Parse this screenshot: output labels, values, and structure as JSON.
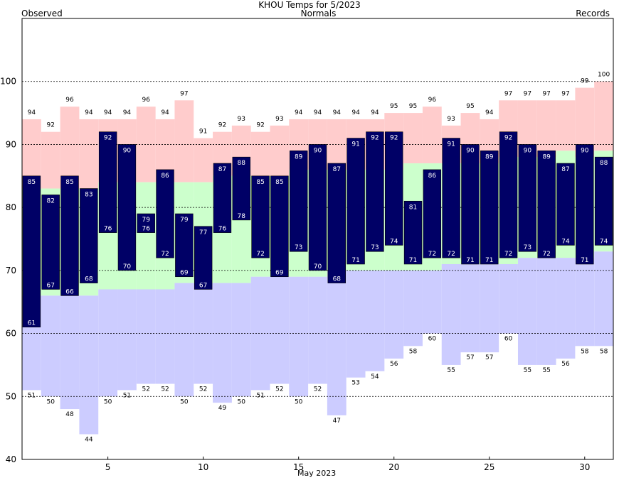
{
  "chart_data": {
    "type": "bar",
    "title": "KHOU Temps for 5/2023",
    "legend": [
      "Observed",
      "Normals",
      "Records"
    ],
    "xlabel": "May 2023",
    "x_ticks": [
      5,
      10,
      15,
      20,
      25,
      30
    ],
    "y_ticks": [
      40,
      50,
      60,
      70,
      80,
      90,
      100
    ],
    "ylim": [
      40,
      110
    ],
    "xlim": [
      0.5,
      31.5
    ],
    "grid": "horizontal dashed at 50, 60, 70, 80, 90, 100",
    "colors": {
      "observed": "#000066",
      "normal_band": "#ccffcc",
      "record_high_band": "#ffcccc",
      "record_low_band": "#ccccff",
      "legend_observed": "#000080",
      "legend_normals": "#006600",
      "legend_records": "#cc88dd"
    },
    "days": [
      1,
      2,
      3,
      4,
      5,
      6,
      7,
      8,
      9,
      10,
      11,
      12,
      13,
      14,
      15,
      16,
      17,
      18,
      19,
      20,
      21,
      22,
      23,
      24,
      25,
      26,
      27,
      28,
      29,
      30,
      31
    ],
    "observed_high": [
      85,
      82,
      85,
      83,
      92,
      90,
      79,
      86,
      79,
      77,
      87,
      88,
      85,
      85,
      89,
      90,
      87,
      91,
      92,
      92,
      81,
      86,
      91,
      90,
      89,
      92,
      90,
      89,
      87,
      90,
      88
    ],
    "observed_low": [
      61,
      67,
      66,
      68,
      76,
      70,
      76,
      72,
      69,
      67,
      76,
      78,
      72,
      69,
      73,
      70,
      68,
      71,
      73,
      74,
      71,
      72,
      72,
      71,
      71,
      72,
      73,
      72,
      74,
      71,
      74
    ],
    "normal_high": [
      83,
      83,
      83,
      83,
      84,
      84,
      84,
      84,
      84,
      84,
      85,
      85,
      85,
      85,
      86,
      86,
      86,
      86,
      86,
      86,
      87,
      87,
      87,
      87,
      87,
      88,
      88,
      88,
      89,
      88,
      89
    ],
    "normal_low": [
      66,
      66,
      66,
      66,
      67,
      67,
      67,
      67,
      68,
      68,
      68,
      68,
      69,
      69,
      69,
      69,
      70,
      70,
      70,
      70,
      70,
      70,
      71,
      71,
      71,
      71,
      72,
      72,
      72,
      72,
      73
    ],
    "record_high": [
      94,
      92,
      96,
      94,
      94,
      94,
      96,
      94,
      97,
      91,
      92,
      93,
      92,
      93,
      94,
      94,
      94,
      94,
      94,
      95,
      95,
      96,
      93,
      95,
      94,
      97,
      97,
      97,
      97,
      99,
      100
    ],
    "record_low": [
      51,
      50,
      48,
      44,
      50,
      51,
      52,
      52,
      50,
      52,
      49,
      50,
      51,
      52,
      50,
      52,
      47,
      53,
      54,
      56,
      58,
      60,
      55,
      57,
      57,
      60,
      55,
      55,
      56,
      58,
      58
    ]
  }
}
